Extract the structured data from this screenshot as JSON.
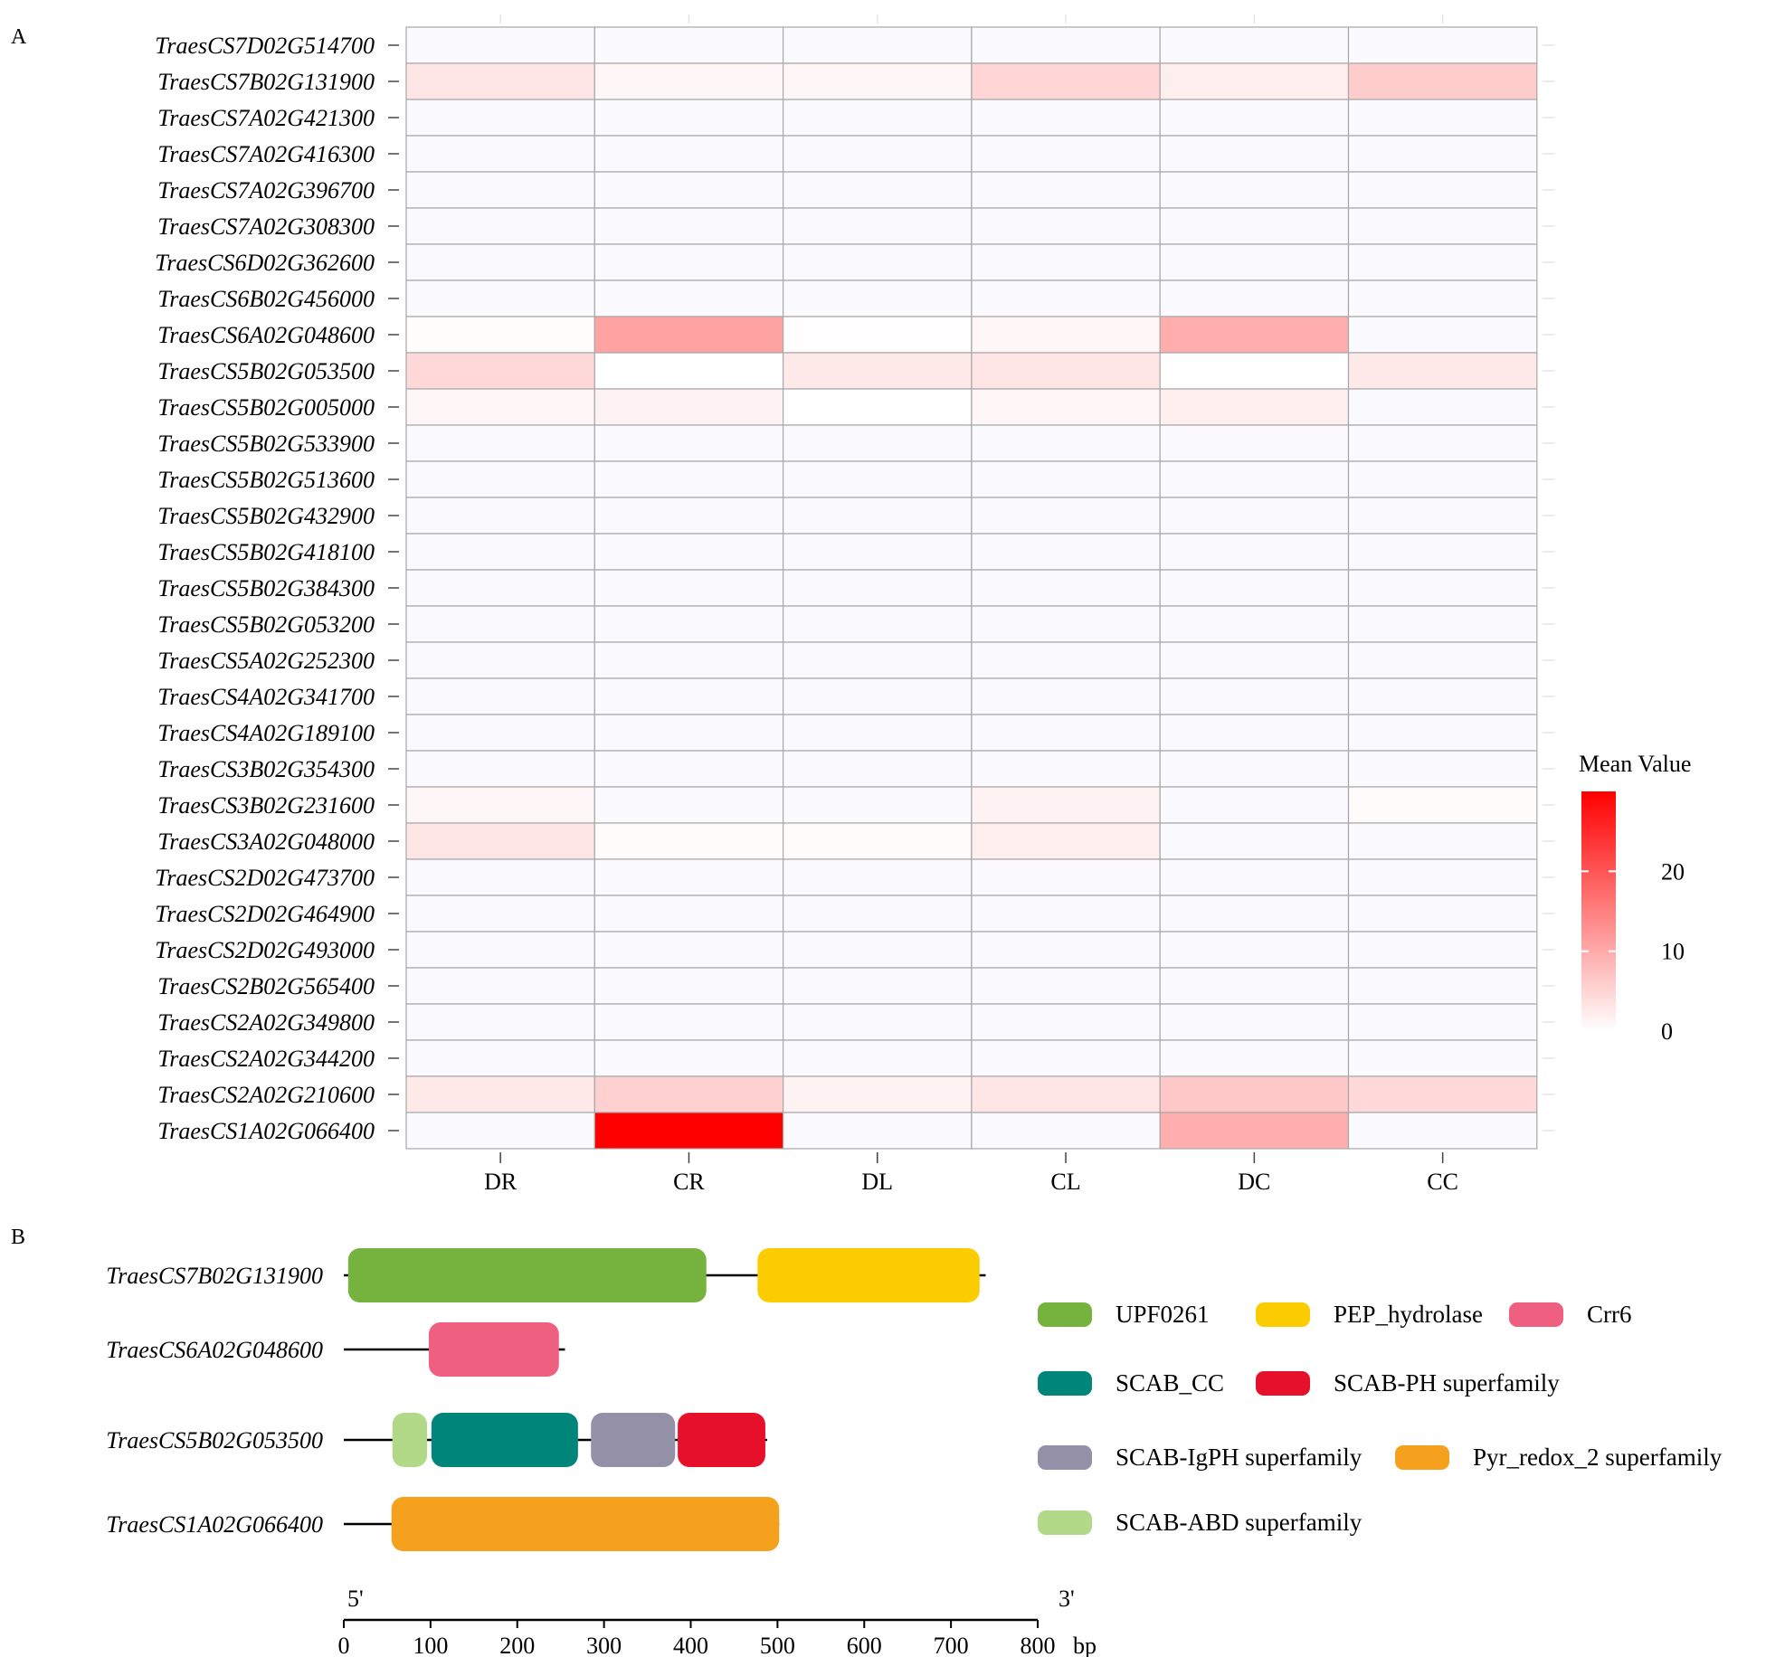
{
  "panel_labels": {
    "a": "A",
    "b": "B"
  },
  "chart_data": [
    {
      "type": "heatmap",
      "panel": "A",
      "columns": [
        "DR",
        "CR",
        "DL",
        "CL",
        "DC",
        "CC"
      ],
      "rows": [
        "TraesCS7D02G514700",
        "TraesCS7B02G131900",
        "TraesCS7A02G421300",
        "TraesCS7A02G416300",
        "TraesCS7A02G396700",
        "TraesCS7A02G308300",
        "TraesCS6D02G362600",
        "TraesCS6B02G456000",
        "TraesCS6A02G048600",
        "TraesCS5B02G053500",
        "TraesCS5B02G005000",
        "TraesCS5B02G533900",
        "TraesCS5B02G513600",
        "TraesCS5B02G432900",
        "TraesCS5B02G418100",
        "TraesCS5B02G384300",
        "TraesCS5B02G053200",
        "TraesCS5A02G252300",
        "TraesCS4A02G341700",
        "TraesCS4A02G189100",
        "TraesCS3B02G354300",
        "TraesCS3B02G231600",
        "TraesCS3A02G048000",
        "TraesCS2D02G473700",
        "TraesCS2D02G464900",
        "TraesCS2D02G493000",
        "TraesCS2B02G565400",
        "TraesCS2A02G349800",
        "TraesCS2A02G344200",
        "TraesCS2A02G210600",
        "TraesCS1A02G066400"
      ],
      "values": [
        [
          0,
          0,
          0,
          0,
          0,
          0
        ],
        [
          3,
          1,
          1,
          5,
          2,
          6
        ],
        [
          0,
          0,
          0,
          0,
          0,
          0
        ],
        [
          0,
          0,
          0,
          0,
          0,
          0
        ],
        [
          0,
          0,
          0,
          0,
          0,
          0
        ],
        [
          0,
          0,
          0,
          0,
          0,
          0
        ],
        [
          0,
          0,
          0,
          0,
          0,
          0
        ],
        [
          0,
          0,
          0,
          0,
          0,
          0
        ],
        [
          0.3,
          11,
          0.2,
          1,
          9.5,
          0
        ],
        [
          4.5,
          0.1,
          2.5,
          3,
          0.05,
          2.5
        ],
        [
          1,
          1.5,
          0.05,
          1,
          2,
          0
        ],
        [
          0,
          0,
          0,
          0,
          0,
          0
        ],
        [
          0,
          0,
          0,
          0,
          0,
          0
        ],
        [
          0,
          0,
          0,
          0,
          0,
          0
        ],
        [
          0,
          0,
          0,
          0,
          0,
          0
        ],
        [
          0,
          0,
          0,
          0,
          0,
          0
        ],
        [
          0,
          0,
          0,
          0,
          0,
          0
        ],
        [
          0,
          0,
          0,
          0,
          0,
          0
        ],
        [
          0,
          0,
          0,
          0,
          0,
          0
        ],
        [
          0,
          0,
          0,
          0,
          0,
          0
        ],
        [
          0,
          0,
          0,
          0,
          0,
          0
        ],
        [
          1,
          0,
          0,
          1.5,
          0,
          0.5
        ],
        [
          3,
          0.5,
          0.5,
          2,
          0,
          0
        ],
        [
          0,
          0,
          0,
          0,
          0,
          0
        ],
        [
          0,
          0,
          0,
          0,
          0,
          0
        ],
        [
          0,
          0,
          0,
          0,
          0,
          0
        ],
        [
          0,
          0,
          0,
          0,
          0,
          0
        ],
        [
          0,
          0,
          0,
          0,
          0,
          0
        ],
        [
          0,
          0,
          0,
          0,
          0,
          0
        ],
        [
          2.5,
          5.5,
          1.5,
          3,
          6.5,
          4.5
        ],
        [
          0,
          30,
          0,
          0,
          9.5,
          0
        ]
      ],
      "legend": {
        "title": "Mean Value",
        "ticks": [
          0,
          10,
          20
        ],
        "range": [
          0,
          30
        ],
        "colors": {
          "low": "#ffffff",
          "high": "#ff0000",
          "zero": "#fbfaff"
        }
      }
    },
    {
      "type": "domain-diagram",
      "panel": "B",
      "genes": [
        {
          "name": "TraesCS7B02G131900",
          "length": 740,
          "domains": [
            {
              "name": "UPF0261",
              "start": 5,
              "end": 418
            },
            {
              "name": "PEP_hydrolase",
              "start": 477,
              "end": 733
            }
          ]
        },
        {
          "name": "TraesCS6A02G048600",
          "length": 255,
          "domains": [
            {
              "name": "Crr6",
              "start": 98,
              "end": 248
            }
          ]
        },
        {
          "name": "TraesCS5B02G053500",
          "length": 488,
          "domains": [
            {
              "name": "SCAB-ABD superfamily",
              "start": 56,
              "end": 96
            },
            {
              "name": "SCAB_CC",
              "start": 101,
              "end": 270
            },
            {
              "name": "SCAB-IgPH superfamily",
              "start": 285,
              "end": 382
            },
            {
              "name": "SCAB-PH superfamily",
              "start": 385,
              "end": 486
            }
          ]
        },
        {
          "name": "TraesCS1A02G066400",
          "length": 502,
          "domains": [
            {
              "name": "Pyr_redox_2 superfamily",
              "start": 55,
              "end": 502
            }
          ]
        }
      ],
      "legend": [
        {
          "name": "UPF0261",
          "color": "#76b33e"
        },
        {
          "name": "PEP_hydrolase",
          "color": "#fbcd00"
        },
        {
          "name": "Crr6",
          "color": "#ef5f80"
        },
        {
          "name": "SCAB_CC",
          "color": "#00857a"
        },
        {
          "name": "SCAB-PH superfamily",
          "color": "#e6102b"
        },
        {
          "name": "SCAB-IgPH superfamily",
          "color": "#9390a8"
        },
        {
          "name": "Pyr_redox_2 superfamily",
          "color": "#f5a11e"
        },
        {
          "name": "SCAB-ABD superfamily",
          "color": "#b2d988"
        }
      ],
      "axis": {
        "ticks": [
          0,
          100,
          200,
          300,
          400,
          500,
          600,
          700,
          800
        ],
        "range": [
          0,
          800
        ],
        "unit": "bp",
        "five_prime": "5'",
        "three_prime": "3'"
      }
    }
  ]
}
